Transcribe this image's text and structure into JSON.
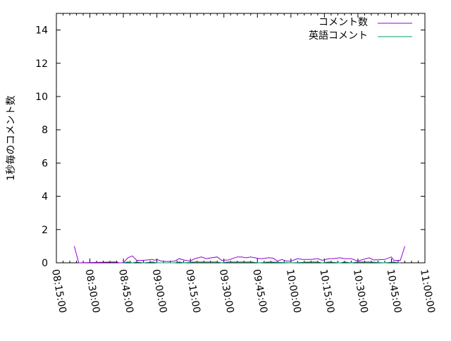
{
  "chart_data": {
    "type": "line",
    "title": "",
    "xlabel": "",
    "ylabel": "1秒毎のコメント数",
    "xlim": [
      "08:15:00",
      "11:00:00"
    ],
    "ylim": [
      0,
      15
    ],
    "x_ticks": [
      "08:15:00",
      "08:30:00",
      "08:45:00",
      "09:00:00",
      "09:15:00",
      "09:30:00",
      "09:45:00",
      "10:00:00",
      "10:15:00",
      "10:30:00",
      "10:45:00",
      "11:00:00"
    ],
    "y_ticks": [
      "0",
      "2",
      "4",
      "6",
      "8",
      "10",
      "12",
      "14"
    ],
    "grid": false,
    "legend_position": "top-right",
    "series": [
      {
        "name": "コメント数",
        "color": "#9400d3",
        "x": [
          "08:23",
          "08:25",
          "08:42",
          "08:43",
          "08:45",
          "08:47",
          "08:49",
          "08:51",
          "08:54",
          "08:58",
          "08:59",
          "09:00",
          "09:02",
          "09:05",
          "09:08",
          "09:10",
          "09:12",
          "09:15",
          "09:17",
          "09:20",
          "09:22",
          "09:27",
          "09:29",
          "09:32",
          "09:36",
          "09:38",
          "09:40",
          "09:42",
          "09:46",
          "09:47",
          "09:50",
          "09:52",
          "09:54",
          "09:56",
          "09:58",
          "10:00",
          "10:03",
          "10:05",
          "10:09",
          "10:12",
          "10:14",
          "10:17",
          "10:19",
          "10:22",
          "10:24",
          "10:27",
          "10:30",
          "10:31",
          "10:35",
          "10:37",
          "10:42",
          "10:45",
          "10:46",
          "10:49",
          "10:51"
        ],
        "values": [
          1.0,
          0,
          0.05,
          0,
          0,
          0.3,
          0.41,
          0.15,
          0.15,
          0.2,
          0.15,
          0.2,
          0.1,
          0.08,
          0.1,
          0.25,
          0.17,
          0.1,
          0.25,
          0.35,
          0.25,
          0.35,
          0.15,
          0.17,
          0.35,
          0.35,
          0.3,
          0.35,
          0.25,
          0.25,
          0.3,
          0.28,
          0.1,
          0.2,
          0.1,
          0.1,
          0.25,
          0.2,
          0.2,
          0.25,
          0.15,
          0.25,
          0.25,
          0.3,
          0.25,
          0.25,
          0.1,
          0.15,
          0.3,
          0.17,
          0.2,
          0.35,
          0.15,
          0.15,
          1.0
        ]
      },
      {
        "name": "英語コメント",
        "color": "#009e73",
        "x": [
          "08:45",
          "08:47",
          "08:49",
          "08:51",
          "08:54",
          "08:58",
          "09:00",
          "09:08",
          "09:10",
          "09:12",
          "09:17",
          "09:20",
          "09:27",
          "09:29",
          "09:32",
          "09:36",
          "09:42",
          "09:46",
          "09:50",
          "10:00",
          "10:09",
          "10:12",
          "10:14",
          "10:17",
          "10:22",
          "10:24",
          "10:27",
          "10:30",
          "10:35",
          "10:42",
          "10:46",
          "10:49"
        ],
        "values": [
          0,
          0.05,
          0,
          0.05,
          0,
          0.05,
          0,
          0,
          0.05,
          0,
          0.05,
          0.05,
          0.05,
          0,
          0.05,
          0.05,
          0.05,
          0,
          0.05,
          0,
          0.05,
          0.05,
          0,
          0.05,
          0,
          0.05,
          0,
          0.05,
          0.05,
          0,
          0.05,
          0
        ]
      }
    ]
  }
}
